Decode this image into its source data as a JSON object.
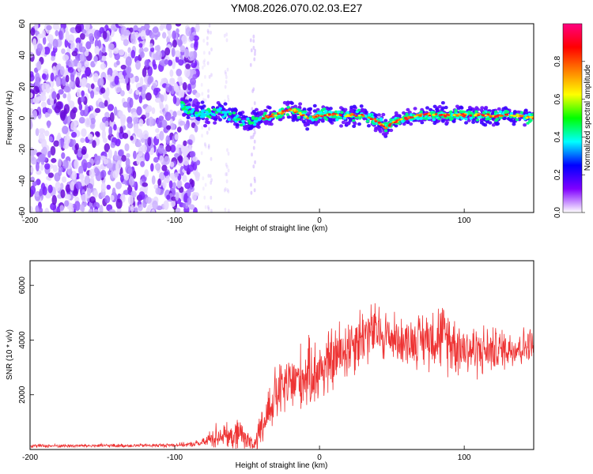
{
  "title": "YM08.2026.070.02.03.E27",
  "chart_data": [
    {
      "type": "heatmap",
      "title": "YM08.2026.070.02.03.E27",
      "xlabel": "Height of straight line (km)",
      "ylabel": "Frequency (Hz)",
      "xlim": [
        -200,
        148
      ],
      "ylim": [
        -60,
        60
      ],
      "xticks": [
        "-200",
        "-100",
        "0",
        "100"
      ],
      "yticks": [
        "60",
        "40",
        "20",
        "0",
        "-20",
        "-40",
        "-60"
      ],
      "colorbar": {
        "label": "Normalized spectral amplitude",
        "range": [
          0,
          1
        ],
        "ticks": [
          "0.0",
          "0.2",
          "0.4",
          "0.6",
          "0.8"
        ],
        "colors": [
          "#ffffff",
          "#8000ff",
          "#0000ff",
          "#00ffff",
          "#00ff00",
          "#ffff00",
          "#ff8000",
          "#ff0000",
          "#ff0080"
        ]
      },
      "trace": {
        "x": [
          -95,
          -88,
          -80,
          -70,
          -60,
          -52,
          -46,
          -40,
          -30,
          -20,
          -12,
          -5,
          0,
          10,
          20,
          30,
          40,
          46,
          52,
          60,
          70,
          80,
          90,
          100,
          110,
          120,
          130,
          140,
          148
        ],
        "y": [
          8,
          4,
          2,
          4,
          2,
          -4,
          -2,
          0,
          2,
          6,
          2,
          0,
          2,
          2,
          2,
          2,
          -2,
          -6,
          -2,
          0,
          2,
          2,
          2,
          2,
          2,
          1,
          2,
          1,
          0
        ]
      },
      "noise_region_x": [
        -200,
        -90
      ]
    },
    {
      "type": "line",
      "title": "",
      "xlabel": "Height of straight line (km)",
      "ylabel": "SNR (10 * v/v)",
      "xlim": [
        -200,
        148
      ],
      "ylim": [
        0,
        6900
      ],
      "xticks": [
        "-200",
        "-100",
        "0",
        "100"
      ],
      "yticks": [
        "6000",
        "4000",
        "2000"
      ],
      "series": [
        {
          "name": "SNR",
          "color": "#ee3333",
          "x": [
            -200,
            -150,
            -110,
            -90,
            -80,
            -72,
            -65,
            -60,
            -55,
            -50,
            -45,
            -40,
            -35,
            -30,
            -20,
            -10,
            0,
            10,
            20,
            30,
            40,
            50,
            60,
            70,
            80,
            90,
            100,
            110,
            120,
            130,
            140,
            148
          ],
          "mean": [
            130,
            140,
            150,
            180,
            250,
            500,
            550,
            350,
            650,
            300,
            150,
            700,
            1500,
            2000,
            2400,
            2700,
            2900,
            3300,
            3800,
            4200,
            4300,
            4100,
            3950,
            4000,
            4200,
            4000,
            3700,
            3600,
            3650,
            3700,
            3750,
            3800
          ],
          "spread": [
            80,
            80,
            80,
            100,
            200,
            600,
            500,
            500,
            900,
            600,
            300,
            900,
            1200,
            1300,
            1400,
            1500,
            1500,
            1500,
            1500,
            1400,
            1300,
            1100,
            1000,
            1200,
            1500,
            1500,
            1200,
            1200,
            1000,
            900,
            900,
            800
          ]
        }
      ]
    }
  ]
}
